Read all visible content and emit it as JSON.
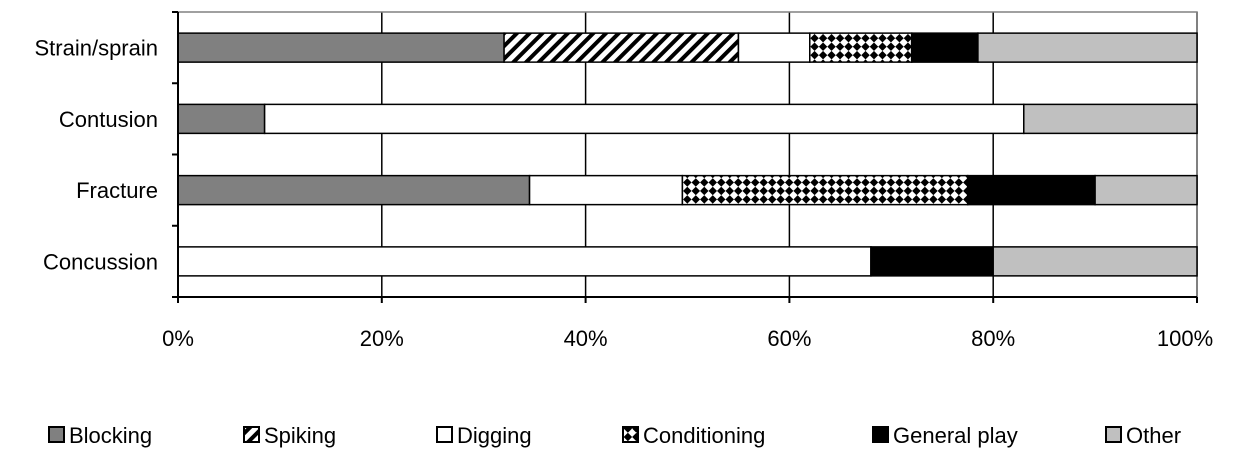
{
  "chart_data": {
    "type": "bar",
    "orientation": "horizontal",
    "stacked": "percent",
    "categories": [
      "Strain/sprain",
      "Contusion",
      "Fracture",
      "Concussion"
    ],
    "series": [
      {
        "name": "Blocking",
        "values": [
          32,
          8.5,
          34.5,
          0
        ],
        "color": "#808080",
        "pattern": "solid"
      },
      {
        "name": "Spiking",
        "values": [
          23,
          0,
          0,
          0
        ],
        "color": "#000000",
        "pattern": "diagonal-hatch"
      },
      {
        "name": "Digging",
        "values": [
          7,
          74.5,
          15,
          68
        ],
        "color": "#ffffff",
        "pattern": "solid"
      },
      {
        "name": "Conditioning",
        "values": [
          10,
          0,
          28,
          0
        ],
        "color": "#000000",
        "pattern": "checker"
      },
      {
        "name": "General play",
        "values": [
          6.5,
          0,
          12.5,
          12
        ],
        "color": "#000000",
        "pattern": "solid"
      },
      {
        "name": "Other",
        "values": [
          21.5,
          17,
          10,
          20
        ],
        "color": "#c0c0c0",
        "pattern": "solid"
      }
    ],
    "x_ticks": [
      "0%",
      "20%",
      "40%",
      "60%",
      "80%",
      "100%"
    ],
    "xlim": [
      0,
      100
    ],
    "grid": true,
    "legend_position": "bottom"
  }
}
